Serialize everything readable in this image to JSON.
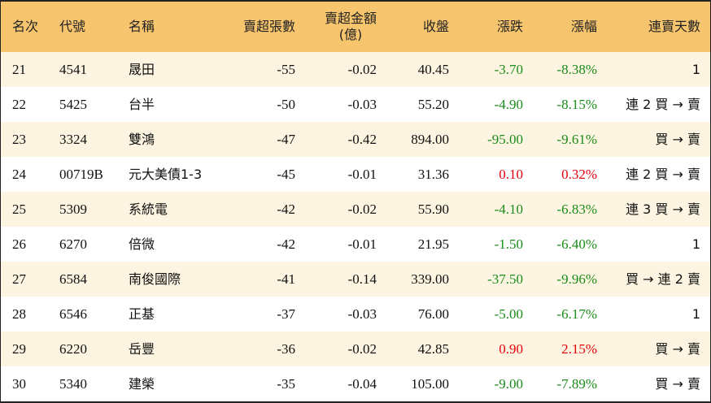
{
  "table": {
    "headers": [
      [
        "名次"
      ],
      [
        "代號"
      ],
      [
        "名稱"
      ],
      [
        "賣超張數"
      ],
      [
        "賣超金額",
        "(億)"
      ],
      [
        "收盤"
      ],
      [
        "漲跌"
      ],
      [
        "漲幅"
      ],
      [
        "連賣天數"
      ]
    ],
    "rows": [
      [
        "21",
        "4541",
        "晟田",
        "-55",
        "-0.02",
        "40.45",
        "-3.70",
        "-8.38%",
        "1"
      ],
      [
        "22",
        "5425",
        "台半",
        "-50",
        "-0.03",
        "55.20",
        "-4.90",
        "-8.15%",
        "連 2 買 → 賣"
      ],
      [
        "23",
        "3324",
        "雙鴻",
        "-47",
        "-0.42",
        "894.00",
        "-95.00",
        "-9.61%",
        "買 → 賣"
      ],
      [
        "24",
        "00719B",
        "元大美債1-3",
        "-45",
        "-0.01",
        "31.36",
        "0.10",
        "0.32%",
        "連 2 買 → 賣"
      ],
      [
        "25",
        "5309",
        "系統電",
        "-42",
        "-0.02",
        "55.90",
        "-4.10",
        "-6.83%",
        "連 3 買 → 賣"
      ],
      [
        "26",
        "6270",
        "倍微",
        "-42",
        "-0.01",
        "21.95",
        "-1.50",
        "-6.40%",
        "1"
      ],
      [
        "27",
        "6584",
        "南俊國際",
        "-41",
        "-0.14",
        "339.00",
        "-37.50",
        "-9.96%",
        "買 → 連 2 賣"
      ],
      [
        "28",
        "6546",
        "正基",
        "-37",
        "-0.03",
        "76.00",
        "-5.00",
        "-6.17%",
        "1"
      ],
      [
        "29",
        "6220",
        "岳豐",
        "-36",
        "-0.02",
        "42.85",
        "0.90",
        "2.15%",
        "買 → 賣"
      ],
      [
        "30",
        "5340",
        "建榮",
        "-35",
        "-0.04",
        "105.00",
        "-9.00",
        "-7.89%",
        "買 → 賣"
      ]
    ],
    "up_color": "#e8000b",
    "down_color": "#1a8c1a"
  }
}
